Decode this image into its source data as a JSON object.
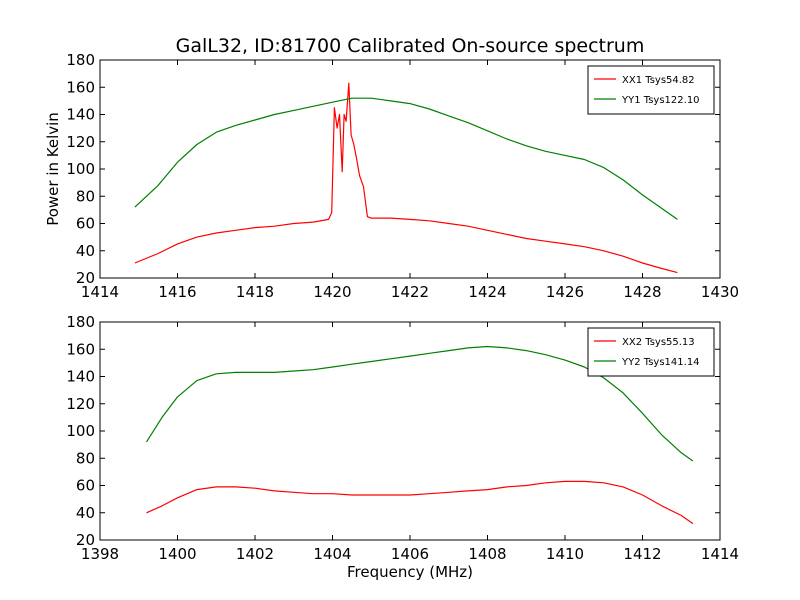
{
  "chart_data": [
    {
      "type": "line",
      "title": "GalL32, ID:81700 Calibrated On-source spectrum",
      "xlabel": "",
      "ylabel": "Power in Kelvin",
      "xlim": [
        1414,
        1430
      ],
      "ylim": [
        20,
        180
      ],
      "xticks": [
        "1414",
        "1416",
        "1418",
        "1420",
        "1422",
        "1424",
        "1426",
        "1428",
        "1430"
      ],
      "yticks": [
        "20",
        "40",
        "60",
        "80",
        "100",
        "120",
        "140",
        "160",
        "180"
      ],
      "legend_position": "top-right",
      "series": [
        {
          "name": "XX1 Tsys54.82",
          "color": "#ff0000",
          "x": [
            1414.9,
            1415.5,
            1416.0,
            1416.5,
            1417.0,
            1417.5,
            1418.0,
            1418.5,
            1419.0,
            1419.5,
            1419.9,
            1419.98,
            1420.05,
            1420.12,
            1420.18,
            1420.25,
            1420.3,
            1420.35,
            1420.42,
            1420.48,
            1420.55,
            1420.62,
            1420.7,
            1420.8,
            1420.9,
            1421.0,
            1421.5,
            1422.0,
            1422.5,
            1423.0,
            1423.5,
            1424.0,
            1424.5,
            1425.0,
            1425.5,
            1426.0,
            1426.5,
            1427.0,
            1427.5,
            1428.0,
            1428.5,
            1428.9
          ],
          "values": [
            31,
            38,
            45,
            50,
            53,
            55,
            57,
            58,
            60,
            61,
            63,
            68,
            145,
            130,
            140,
            98,
            140,
            135,
            163,
            125,
            118,
            108,
            95,
            87,
            65,
            64,
            64,
            63,
            62,
            60,
            58,
            55,
            52,
            49,
            47,
            45,
            43,
            40,
            36,
            31,
            27,
            24
          ]
        },
        {
          "name": "YY1 Tsys122.10",
          "color": "#008000",
          "x": [
            1414.9,
            1415.5,
            1416.0,
            1416.5,
            1417.0,
            1417.5,
            1418.0,
            1418.5,
            1419.0,
            1419.5,
            1420.0,
            1420.5,
            1421.0,
            1421.5,
            1422.0,
            1422.5,
            1423.0,
            1423.5,
            1424.0,
            1424.5,
            1425.0,
            1425.5,
            1426.0,
            1426.5,
            1427.0,
            1427.5,
            1428.0,
            1428.5,
            1428.9
          ],
          "values": [
            72,
            88,
            105,
            118,
            127,
            132,
            136,
            140,
            143,
            146,
            149,
            152,
            152,
            150,
            148,
            144,
            139,
            134,
            128,
            122,
            117,
            113,
            110,
            107,
            101,
            92,
            81,
            71,
            63
          ]
        }
      ]
    },
    {
      "type": "line",
      "title": "",
      "xlabel": "Frequency (MHz)",
      "ylabel": "",
      "xlim": [
        1398,
        1414
      ],
      "ylim": [
        20,
        180
      ],
      "xticks": [
        "1398",
        "1400",
        "1402",
        "1404",
        "1406",
        "1408",
        "1410",
        "1412",
        "1414"
      ],
      "yticks": [
        "20",
        "40",
        "60",
        "80",
        "100",
        "120",
        "140",
        "160",
        "180"
      ],
      "legend_position": "top-right",
      "series": [
        {
          "name": "XX2 Tsys55.13",
          "color": "#ff0000",
          "x": [
            1399.2,
            1399.6,
            1400.0,
            1400.5,
            1401.0,
            1401.5,
            1402.0,
            1402.5,
            1403.0,
            1403.5,
            1404.0,
            1404.5,
            1405.0,
            1405.5,
            1406.0,
            1406.5,
            1407.0,
            1407.5,
            1408.0,
            1408.5,
            1409.0,
            1409.5,
            1410.0,
            1410.5,
            1411.0,
            1411.5,
            1412.0,
            1412.5,
            1413.0,
            1413.3
          ],
          "values": [
            40,
            45,
            51,
            57,
            59,
            59,
            58,
            56,
            55,
            54,
            54,
            53,
            53,
            53,
            53,
            54,
            55,
            56,
            57,
            59,
            60,
            62,
            63,
            63,
            62,
            59,
            53,
            45,
            38,
            32
          ]
        },
        {
          "name": "YY2 Tsys141.14",
          "color": "#008000",
          "x": [
            1399.2,
            1399.6,
            1400.0,
            1400.5,
            1401.0,
            1401.5,
            1402.0,
            1402.5,
            1403.0,
            1403.5,
            1404.0,
            1404.5,
            1405.0,
            1405.5,
            1406.0,
            1406.5,
            1407.0,
            1407.5,
            1408.0,
            1408.5,
            1409.0,
            1409.5,
            1410.0,
            1410.5,
            1411.0,
            1411.5,
            1412.0,
            1412.5,
            1413.0,
            1413.3
          ],
          "values": [
            92,
            110,
            125,
            137,
            142,
            143,
            143,
            143,
            144,
            145,
            147,
            149,
            151,
            153,
            155,
            157,
            159,
            161,
            162,
            161,
            159,
            156,
            152,
            147,
            139,
            128,
            113,
            97,
            84,
            78
          ]
        }
      ]
    }
  ]
}
